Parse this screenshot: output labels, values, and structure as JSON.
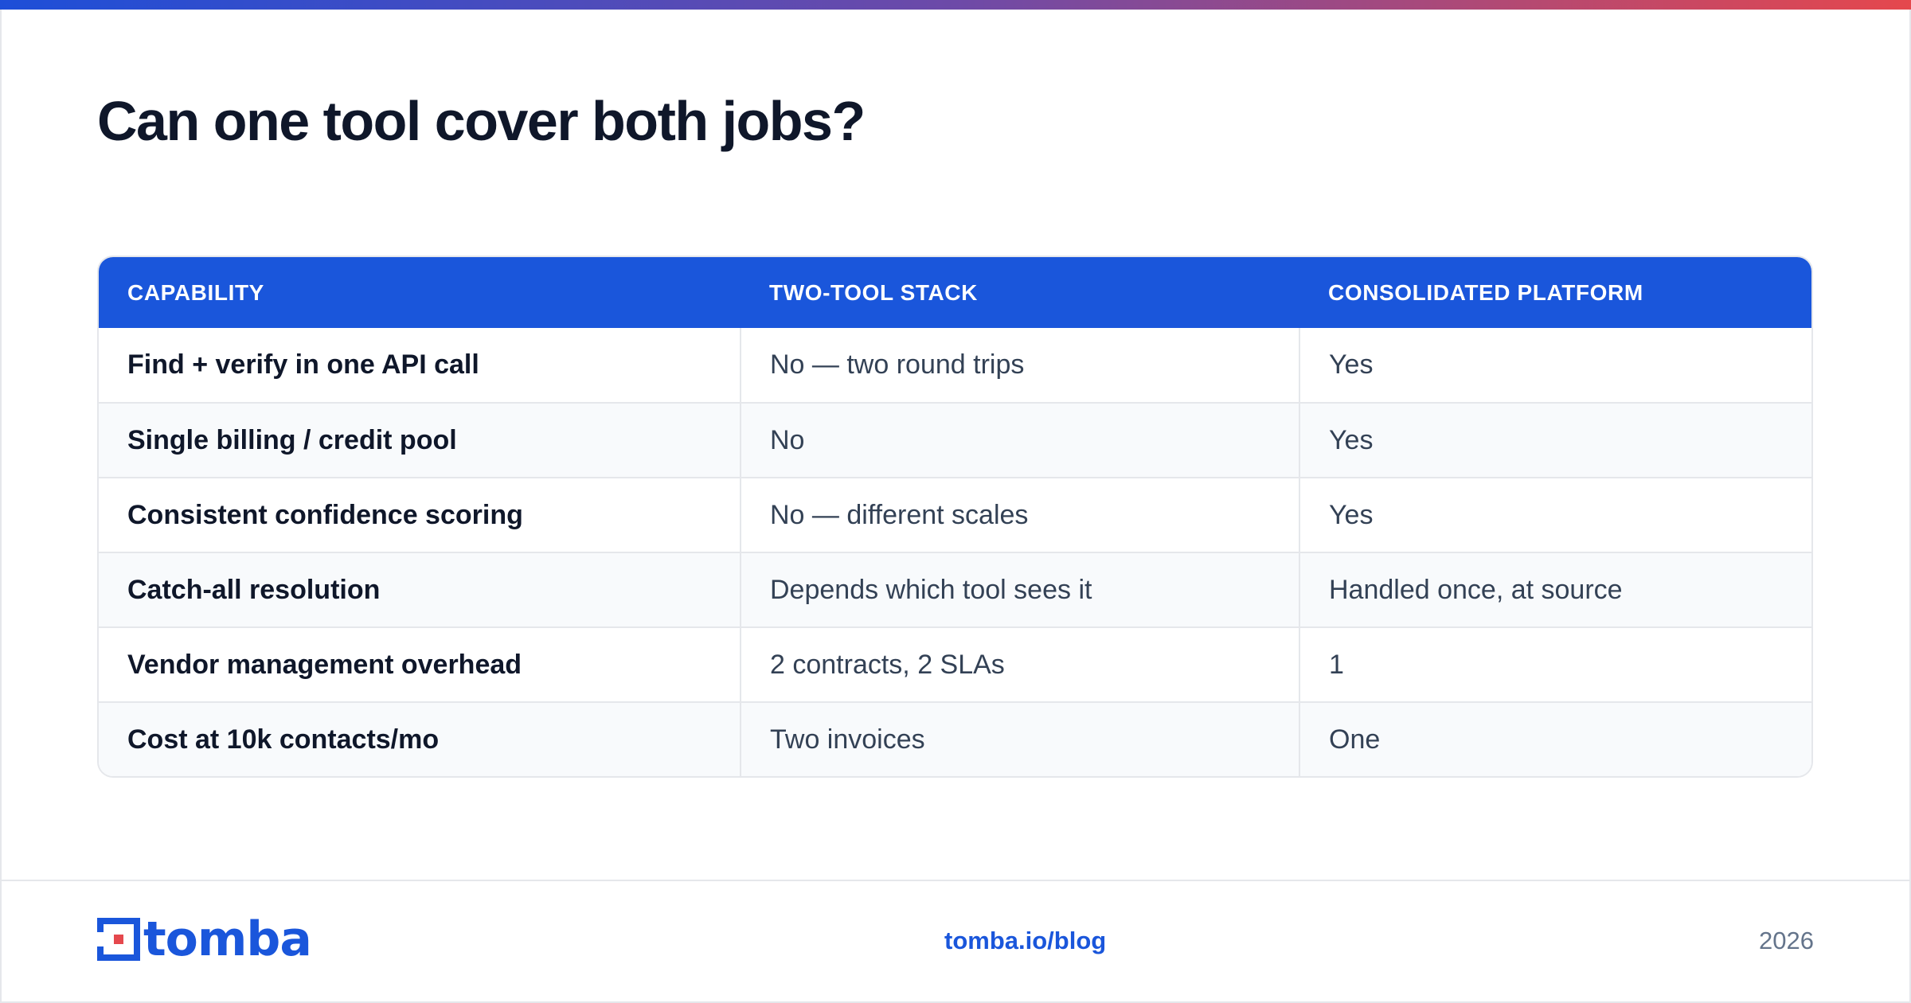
{
  "title": "Can one tool cover both jobs?",
  "table": {
    "headers": [
      "CAPABILITY",
      "TWO-TOOL STACK",
      "CONSOLIDATED PLATFORM"
    ],
    "rows": [
      [
        "Find + verify in one API call",
        "No — two round trips",
        "Yes"
      ],
      [
        "Single billing / credit pool",
        "No",
        "Yes"
      ],
      [
        "Consistent confidence scoring",
        "No — different scales",
        "Yes"
      ],
      [
        "Catch-all resolution",
        "Depends which tool sees it",
        "Handled once, at source"
      ],
      [
        "Vendor management overhead",
        "2 contracts, 2 SLAs",
        "1"
      ],
      [
        "Cost at 10k contacts/mo",
        "Two invoices",
        "One"
      ]
    ]
  },
  "footer": {
    "logo_text": "tomba",
    "link": "tomba.io/blog",
    "year": "2026"
  },
  "colors": {
    "accent": "#1a56db",
    "accent_red": "#e5484d",
    "header_bg": "#1a56db",
    "stripe": "#f8fafc",
    "border": "#e5e7eb"
  },
  "icons": {
    "logo_mark": "tomba-logo-icon"
  }
}
